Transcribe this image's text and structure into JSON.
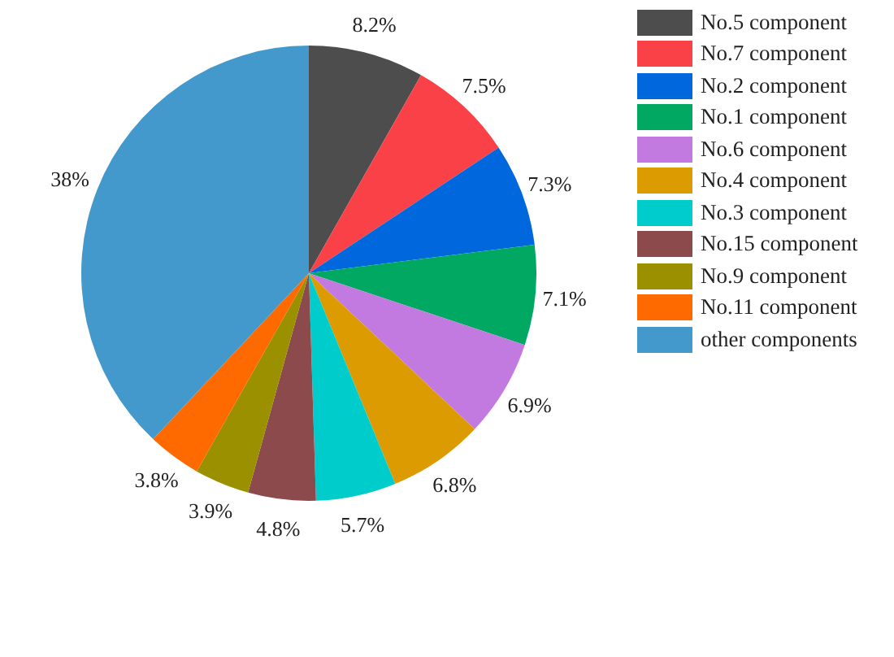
{
  "chart_data": {
    "type": "pie",
    "categories": [
      "No.5 component",
      "No.7 component",
      "No.2 component",
      "No.1 component",
      "No.6 component",
      "No.4 component",
      "No.3 component",
      "No.15 component",
      "No.9 component",
      "No.11 component",
      "other components"
    ],
    "values": [
      8.2,
      7.5,
      7.3,
      7.1,
      6.9,
      6.8,
      5.7,
      4.8,
      3.9,
      3.8,
      38
    ],
    "value_labels": [
      "8.2%",
      "7.5%",
      "7.3%",
      "7.1%",
      "6.9%",
      "6.8%",
      "5.7%",
      "4.8%",
      "3.9%",
      "3.8%",
      "38%"
    ],
    "colors": [
      "#4d4d4d",
      "#fa4147",
      "#0068dc",
      "#00a862",
      "#c27ae0",
      "#dc9b00",
      "#00cccc",
      "#8c4a4d",
      "#9a9000",
      "#ff6a00",
      "#4499cc"
    ],
    "legend": "top right"
  }
}
